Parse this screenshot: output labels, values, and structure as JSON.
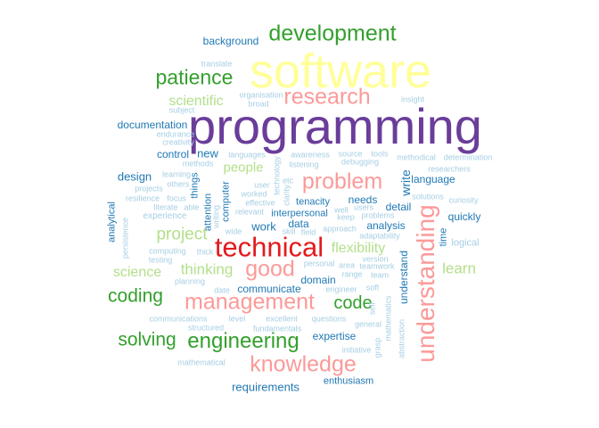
{
  "palette": {
    "yellow": "#ffff99",
    "purple": "#6a3d9a",
    "red": "#e31a1c",
    "pink": "#fb9a99",
    "green": "#33a02c",
    "lightgreen": "#b2df8a",
    "blue": "#1f78b4",
    "lightblue": "#a6cee3"
  },
  "words": {
    "software": "software",
    "programming": "programming",
    "technical": "technical",
    "development": "development",
    "understanding": "understanding",
    "research": "research",
    "problem": "problem",
    "good": "good",
    "knowledge": "knowledge",
    "management": "management",
    "engineering": "engineering",
    "patience": "patience",
    "coding": "coding",
    "solving": "solving",
    "code": "code",
    "project": "project",
    "flexibility": "flexibility",
    "learn": "learn",
    "thinking": "thinking",
    "science": "science",
    "scientific": "scientific",
    "people": "people",
    "background": "background",
    "documentation": "documentation",
    "design": "design",
    "control": "control",
    "new": "new",
    "language": "language",
    "write": "write",
    "needs": "needs",
    "detail": "detail",
    "analysis": "analysis",
    "work": "work",
    "data": "data",
    "quickly": "quickly",
    "communicate": "communicate",
    "domain": "domain",
    "expertise": "expertise",
    "requirements": "requirements",
    "enthusiasm": "enthusiasm",
    "understand": "understand",
    "interpersonal": "interpersonal",
    "tenacity": "tenacity",
    "analytical": "analytical",
    "attention": "attention",
    "things": "things",
    "computer": "computer",
    "time": "time",
    "logical": "logical",
    "experience": "experience",
    "translate": "translate",
    "organisation": "organisation",
    "broad": "broad",
    "insight": "insight",
    "subject": "subject",
    "endurance": "endurance",
    "creativity": "creativity",
    "methods": "methods",
    "languages": "languages",
    "awareness": "awareness",
    "source": "source",
    "tools": "tools",
    "methodical": "methodical",
    "determination": "determination",
    "debugging": "debugging",
    "listening": "listening",
    "technology": "technology",
    "learning": "learning",
    "others": "others",
    "researchers": "researchers",
    "projects": "projects",
    "resilience": "resilience",
    "focus": "focus",
    "user": "user",
    "worked": "worked",
    "etc": "etc",
    "effective": "effective",
    "clarity": "clarity",
    "solutions": "solutions",
    "curiosity": "curiosity",
    "literate": "literate",
    "able": "able",
    "relevant": "relevant",
    "well": "well",
    "users": "users",
    "keep": "keep",
    "problems": "problems",
    "persistence": "persistence",
    "writing": "writing",
    "wide": "wide",
    "skill": "skill",
    "field": "field",
    "approach": "approach",
    "adaptability": "adaptability",
    "computing": "computing",
    "testing": "testing",
    "thick": "thick",
    "personal": "personal",
    "area": "area",
    "teamwork": "teamwork",
    "version": "version",
    "range": "range",
    "team": "team",
    "planning": "planning",
    "date": "date",
    "engineer": "engineer",
    "soft": "soft",
    "mathematics": "mathematics",
    "communications": "communications",
    "level": "level",
    "excellent": "excellent",
    "questions": "questions",
    "self": "self",
    "structured": "structured",
    "fundamentals": "fundamentals",
    "general": "general",
    "initiative": "initiative",
    "grasp": "grasp",
    "abstraction": "abstraction",
    "mathematical": "mathematical"
  }
}
